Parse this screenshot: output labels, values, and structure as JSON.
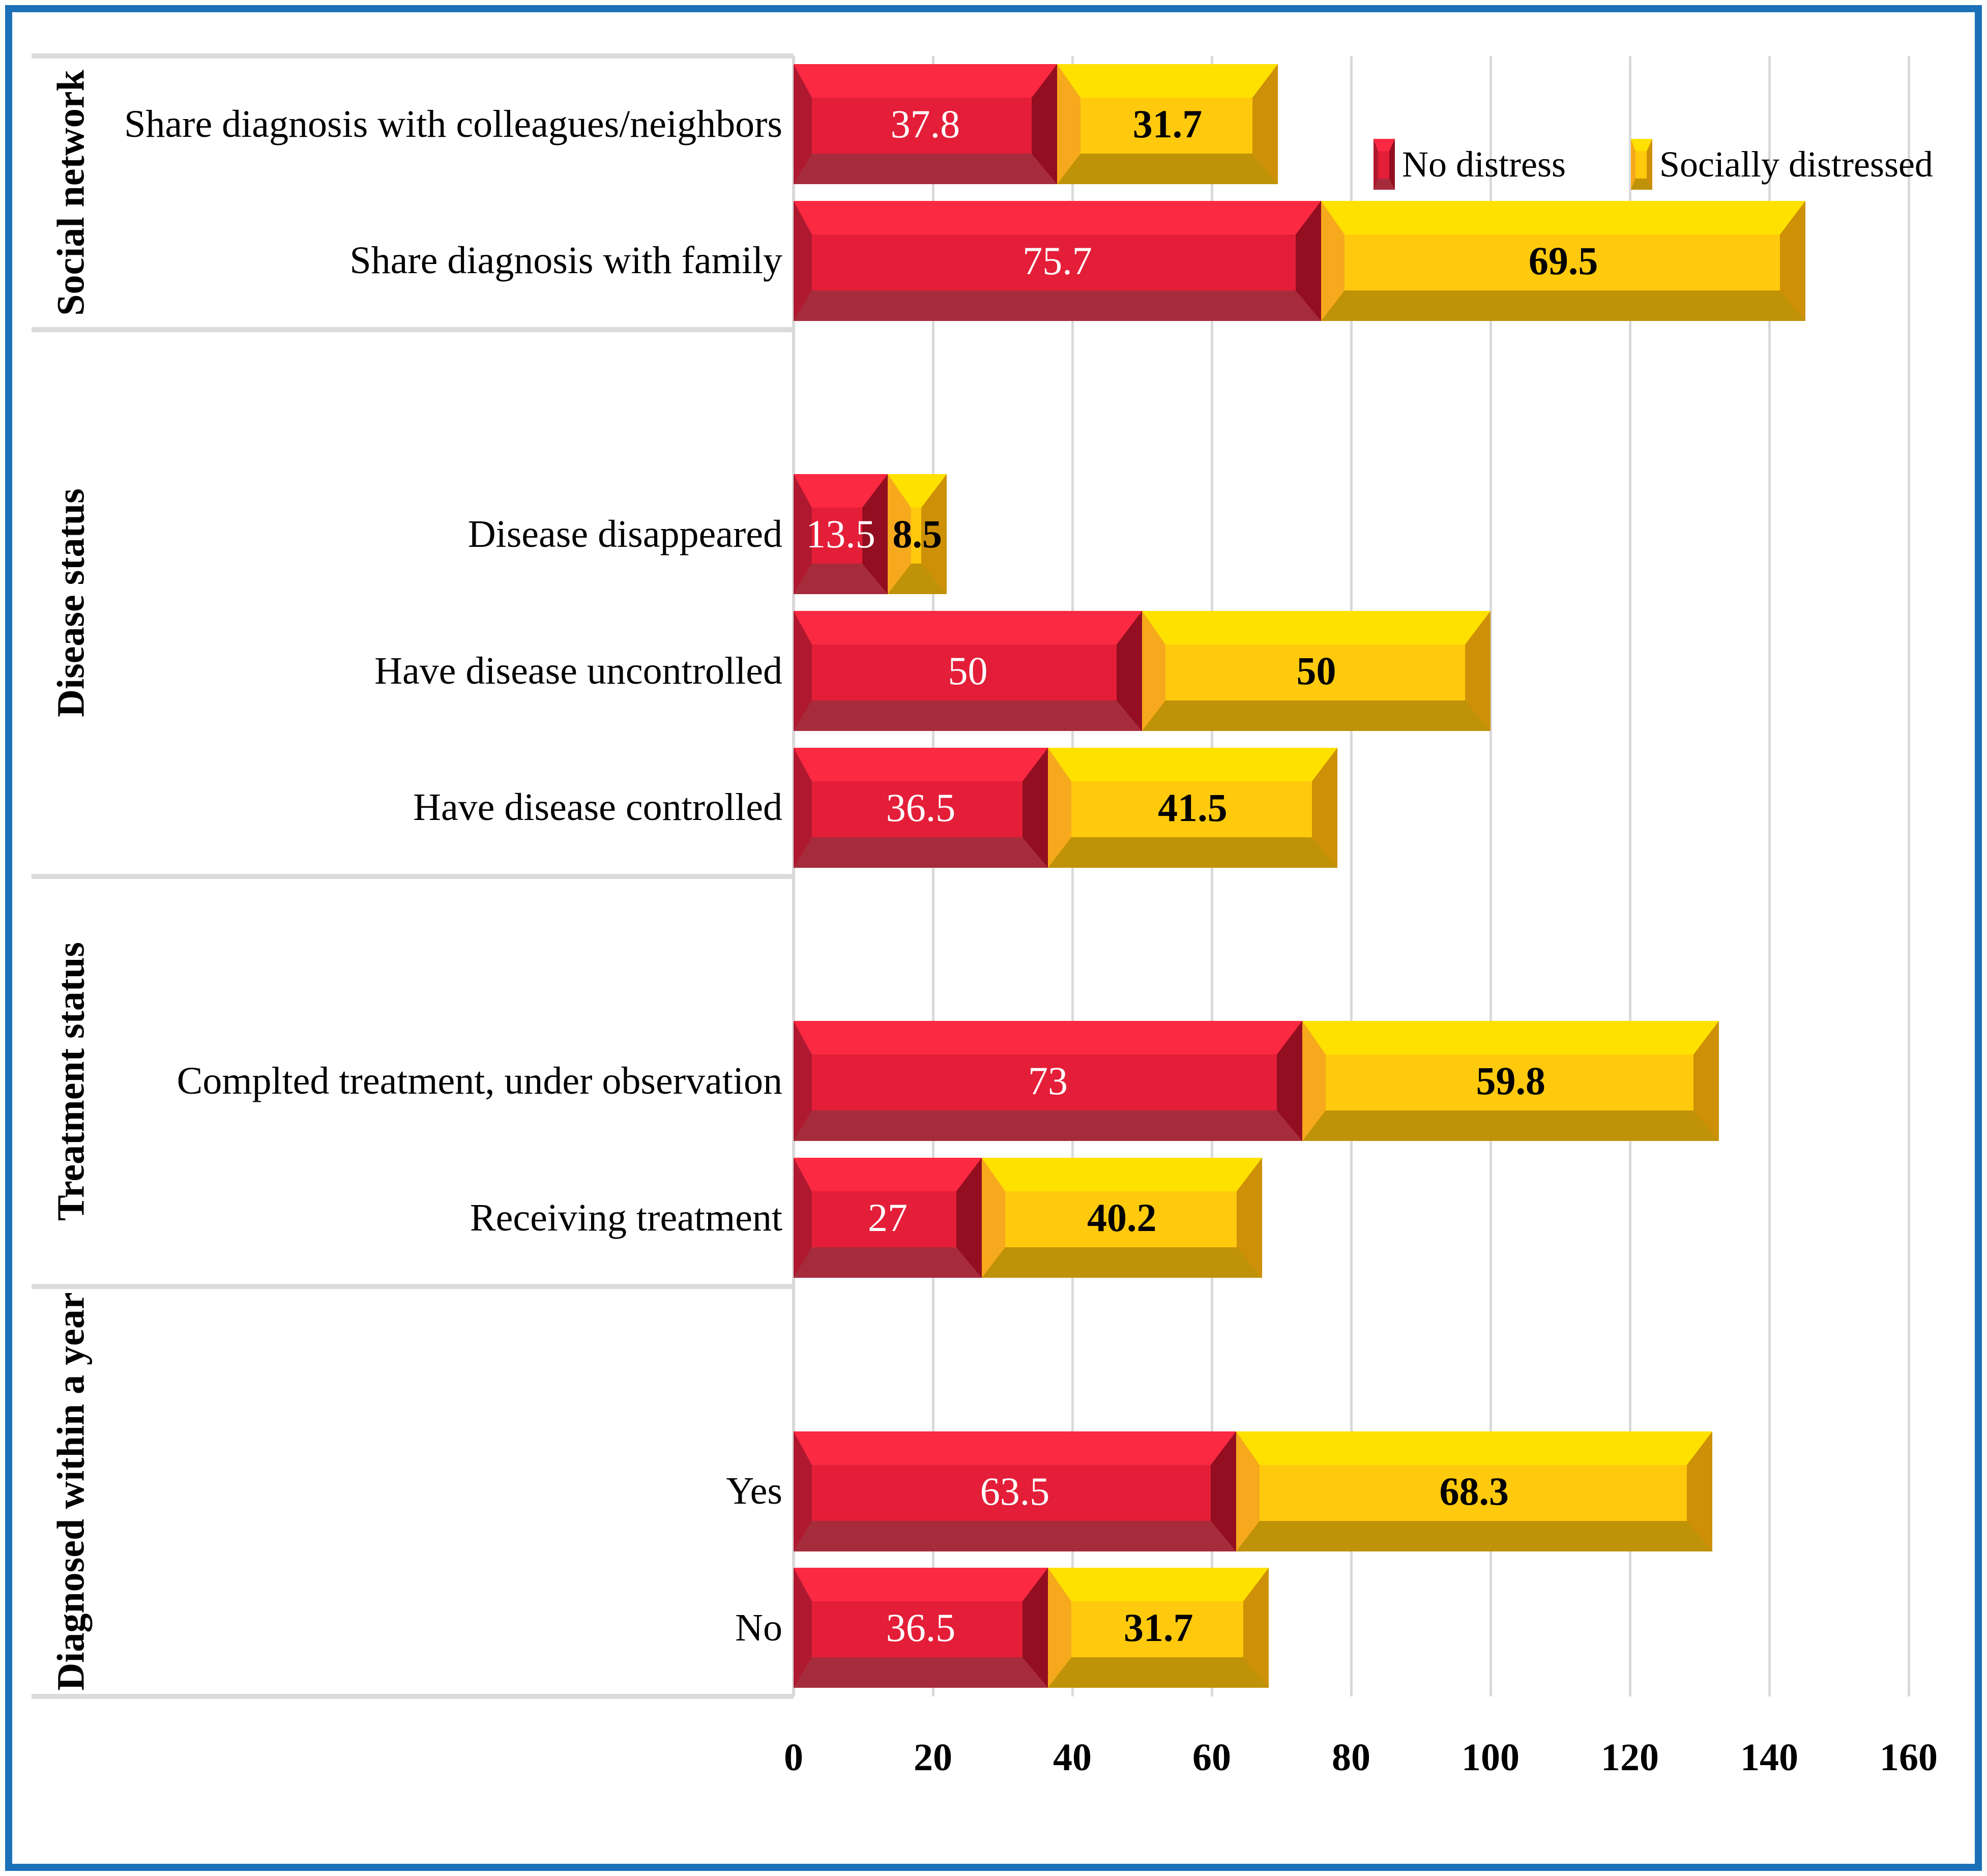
{
  "chart_data": {
    "type": "bar",
    "orientation": "horizontal",
    "stacked": true,
    "title": "",
    "xlabel": "",
    "ylabel": "",
    "xlim": [
      0,
      160
    ],
    "x_ticks": [
      0,
      20,
      40,
      60,
      80,
      100,
      120,
      140,
      160
    ],
    "grid": true,
    "legend_position": "inside-top-right",
    "series": [
      {
        "name": "No distress"
      },
      {
        "name": "Socially distressed"
      }
    ],
    "groups": [
      {
        "label": "Social network",
        "categories": [
          {
            "label": "Share diagnosis with colleagues/neighbors",
            "values": [
              37.8,
              31.7
            ]
          },
          {
            "label": "Share diagnosis with family",
            "values": [
              75.7,
              69.5
            ]
          }
        ]
      },
      {
        "label": "Disease status",
        "categories": [
          {
            "label": "Disease disappeared",
            "values": [
              13.5,
              8.5
            ]
          },
          {
            "label": "Have disease uncontrolled",
            "values": [
              50,
              50
            ]
          },
          {
            "label": "Have disease controlled",
            "values": [
              36.5,
              41.5
            ]
          }
        ]
      },
      {
        "label": "Treatment status",
        "categories": [
          {
            "label": "Complted treatment, under observation",
            "values": [
              73,
              59.8
            ]
          },
          {
            "label": "Receiving treatment",
            "values": [
              27,
              40.2
            ]
          }
        ]
      },
      {
        "label": "Diagnosed within a year",
        "categories": [
          {
            "label": "Yes",
            "values": [
              63.5,
              68.3
            ]
          },
          {
            "label": "No",
            "values": [
              36.5,
              31.7
            ]
          }
        ]
      }
    ]
  },
  "legend": {
    "items": [
      {
        "label": "No distress"
      },
      {
        "label": "Socially distressed"
      }
    ]
  },
  "colors": {
    "frame_blue": "#1C70B8",
    "gridline": "#D9D9D9",
    "separator": "#DBDBDB",
    "series": [
      {
        "name": "No distress",
        "face": "#E41E38",
        "top": "#FB2942",
        "bottom": "#A62C3C",
        "left": "#AF1930",
        "right": "#930E20",
        "value_text": "#FFFFFF"
      },
      {
        "name": "Socially distressed",
        "face": "#FFC90E",
        "top": "#FFE100",
        "bottom": "#C09208",
        "left": "#F6A91C",
        "right": "#CE9006",
        "value_text": "#000000"
      }
    ]
  }
}
